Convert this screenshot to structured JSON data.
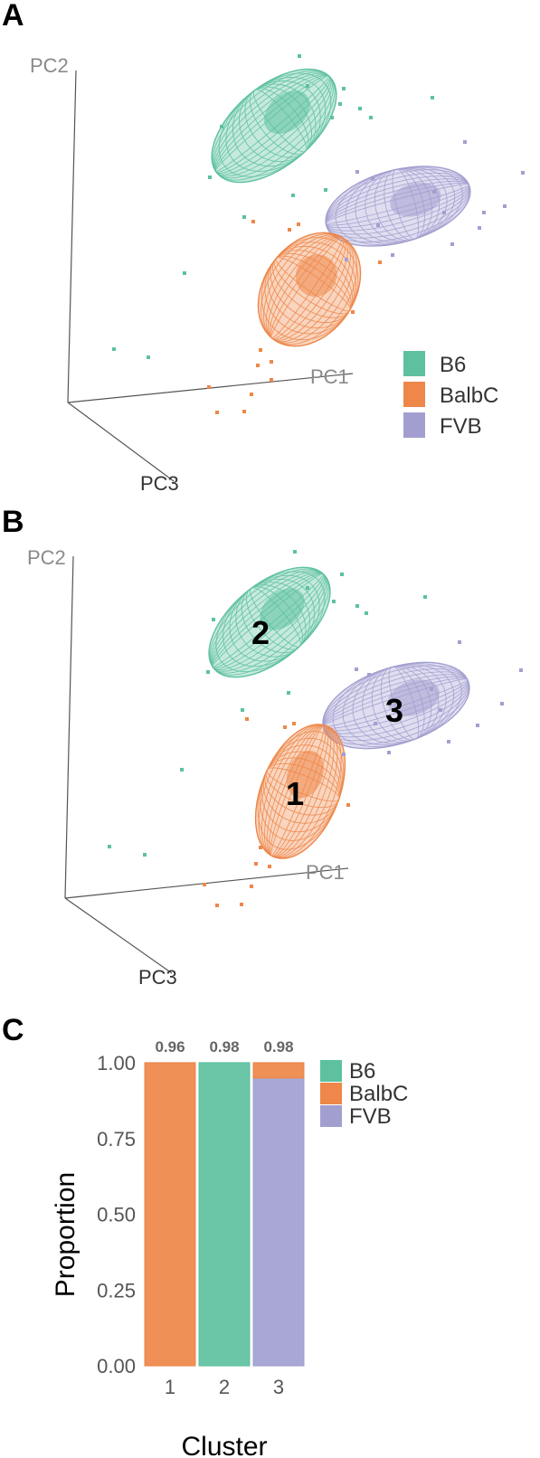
{
  "panels": {
    "a": "A",
    "b": "B",
    "c": "C"
  },
  "colors": {
    "B6": "#5dc1a0",
    "BalbC": "#ee8749",
    "FVB": "#a29fd0",
    "axis": "#555555"
  },
  "pca": {
    "axis_labels": {
      "pc1": "PC1",
      "pc2": "PC2",
      "pc3": "PC3"
    },
    "legend": [
      "B6",
      "BalbC",
      "FVB"
    ],
    "cluster_labels": [
      "1",
      "2",
      "3"
    ]
  },
  "chart_data": [
    {
      "type": "scatter",
      "panel": "A",
      "projection": "3d-pca",
      "axes": [
        "PC1",
        "PC2",
        "PC3"
      ],
      "groups": [
        "B6",
        "BalbC",
        "FVB"
      ],
      "ellipses": true
    },
    {
      "type": "scatter",
      "panel": "B",
      "projection": "3d-pca",
      "axes": [
        "PC1",
        "PC2",
        "PC3"
      ],
      "groups": [
        "B6",
        "BalbC",
        "FVB"
      ],
      "ellipses": true,
      "cluster_annotations": [
        "1",
        "2",
        "3"
      ]
    },
    {
      "type": "bar",
      "panel": "C",
      "stacked": true,
      "categories": [
        "1",
        "2",
        "3"
      ],
      "series": [
        {
          "name": "B6",
          "values": [
            0.0,
            1.0,
            0.0
          ]
        },
        {
          "name": "BalbC",
          "values": [
            1.0,
            0.0,
            0.05
          ]
        },
        {
          "name": "FVB",
          "values": [
            0.0,
            0.0,
            0.95
          ]
        }
      ],
      "bar_labels": [
        "0.96",
        "0.98",
        "0.98"
      ],
      "xlabel": "Cluster",
      "ylabel": "Proportion",
      "ylim": [
        0,
        1
      ],
      "yticks": [
        "0.00",
        "0.25",
        "0.50",
        "0.75",
        "1.00"
      ],
      "legend": [
        "B6",
        "BalbC",
        "FVB"
      ],
      "legend_position": "right"
    }
  ]
}
